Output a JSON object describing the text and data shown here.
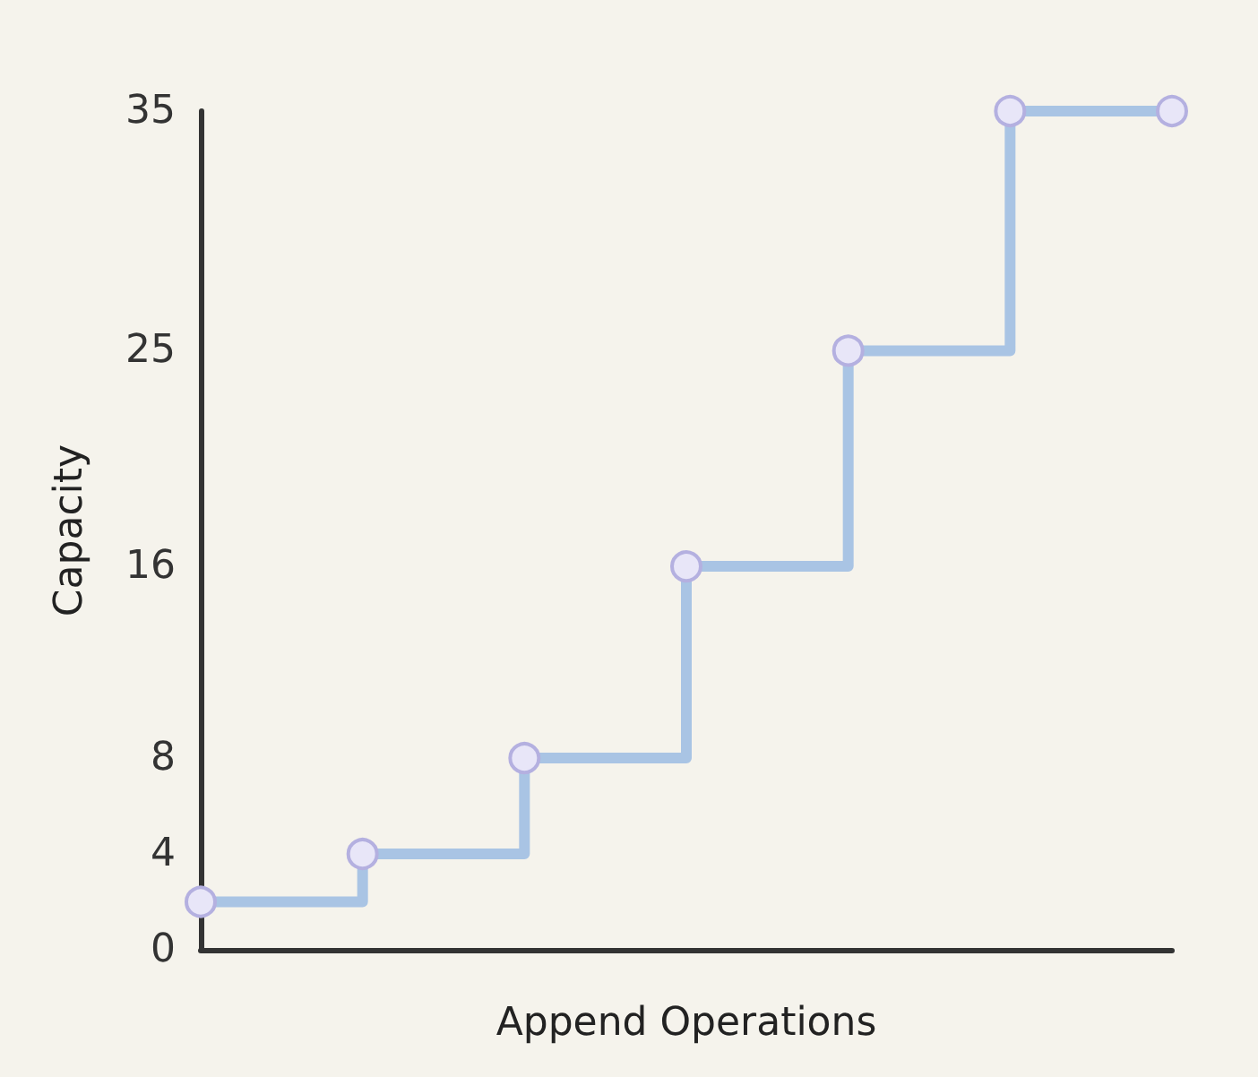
{
  "chart_data": {
    "type": "step",
    "xlabel": "Append Operations",
    "ylabel": "Capacity",
    "categories": [
      null,
      null,
      null,
      null,
      null,
      null,
      null
    ],
    "series": [
      {
        "color": "#a9c4e4",
        "values": [
          2,
          4,
          8,
          16,
          25,
          35,
          35
        ]
      }
    ],
    "ylim": [
      0,
      35
    ],
    "yticks": [
      0,
      4,
      8,
      16,
      25,
      35
    ],
    "tick_labels": "y",
    "grid": false,
    "marker": "circle",
    "line_style": "solid"
  }
}
